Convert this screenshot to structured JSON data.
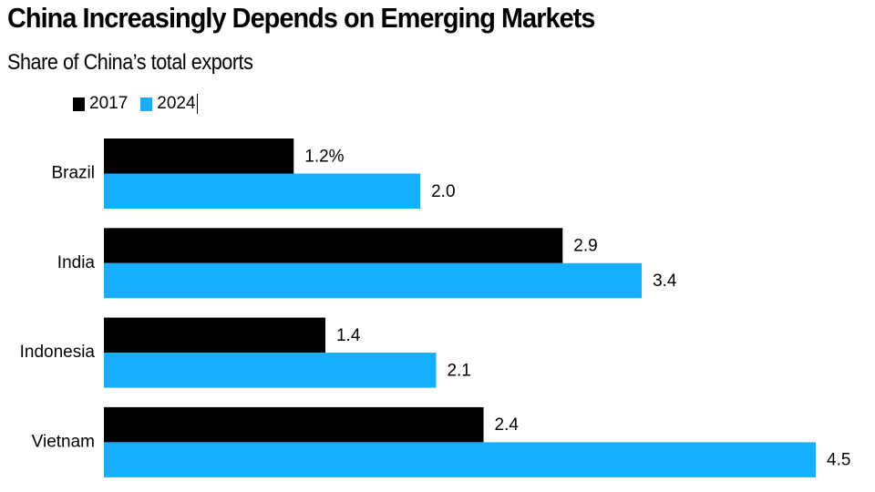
{
  "header": {
    "title": "China Increasingly Depends on Emerging Markets",
    "subtitle": "Share of China’s total exports"
  },
  "legend": [
    {
      "label": "2017",
      "color": "#000000"
    },
    {
      "label": "2024",
      "color": "#16AEFF"
    }
  ],
  "chart_data": {
    "type": "bar",
    "orientation": "horizontal",
    "title": "China Increasingly Depends on Emerging Markets",
    "subtitle": "Share of China’s total exports",
    "xlabel": "",
    "ylabel": "",
    "unit": "%",
    "categories": [
      "Brazil",
      "India",
      "Indonesia",
      "Vietnam"
    ],
    "series": [
      {
        "name": "2017",
        "color": "#000000",
        "values": [
          1.2,
          2.9,
          1.4,
          2.4
        ],
        "labels": [
          "1.2%",
          "2.9",
          "1.4",
          "2.4"
        ]
      },
      {
        "name": "2024",
        "color": "#16AEFF",
        "values": [
          2.0,
          3.4,
          2.1,
          4.5
        ],
        "labels": [
          "2.0",
          "3.4",
          "2.1",
          "4.5"
        ]
      }
    ],
    "xlim": [
      0,
      4.5
    ],
    "grid": false,
    "legend_position": "top-left"
  }
}
